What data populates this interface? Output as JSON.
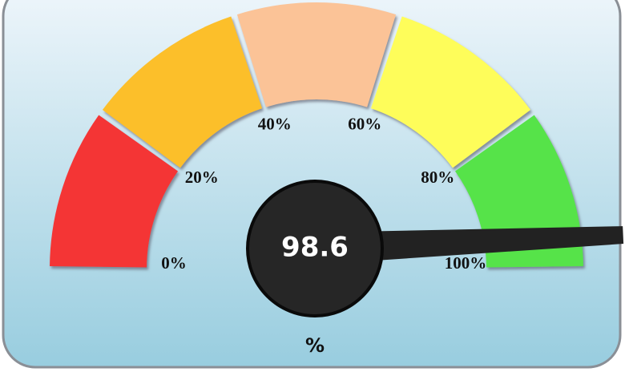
{
  "chart_data": {
    "type": "gauge",
    "value": 98.6,
    "units": "%",
    "xlim": [
      0,
      100
    ],
    "xticks": [
      {
        "value": 0,
        "label": "0%"
      },
      {
        "value": 20,
        "label": "20%"
      },
      {
        "value": 40,
        "label": "40%"
      },
      {
        "value": 60,
        "label": "60%"
      },
      {
        "value": 80,
        "label": "80%"
      },
      {
        "value": 100,
        "label": "100%"
      }
    ],
    "bands": [
      {
        "from": 0,
        "to": 20,
        "color": "#f43436"
      },
      {
        "from": 20,
        "to": 40,
        "color": "#fcbf2c"
      },
      {
        "from": 40,
        "to": 60,
        "color": "#fbc397"
      },
      {
        "from": 60,
        "to": 80,
        "color": "#fefd5a"
      },
      {
        "from": 80,
        "to": 100,
        "color": "#56e34a"
      }
    ],
    "needle_color": "#222222"
  }
}
